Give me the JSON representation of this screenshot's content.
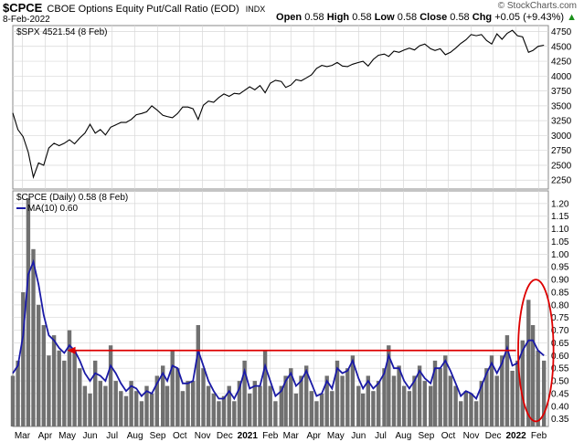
{
  "header": {
    "symbol": "$CPCE",
    "description": "CBOE Options Equity Put/Call Ratio (EOD)",
    "exchange": "INDX",
    "date": "8-Feb-2022",
    "credit": "© StockCharts.com",
    "open_label": "Open",
    "open": "0.58",
    "high_label": "High",
    "high": "0.58",
    "low_label": "Low",
    "low": "0.58",
    "close_label": "Close",
    "close": "0.58",
    "chg_label": "Chg",
    "chg": "+0.05 (+9.43%)",
    "chg_arrow": "▲"
  },
  "chart_data": [
    {
      "type": "line",
      "legend": "$SPX 4521.54 (8 Feb)",
      "color": "#000000",
      "ylim": [
        2100,
        4850
      ],
      "yticks": [
        2250,
        2500,
        2750,
        3000,
        3250,
        3500,
        3750,
        4000,
        4250,
        4500,
        4750
      ],
      "x": [
        "2020-02-17",
        "2020-02-24",
        "2020-03-02",
        "2020-03-09",
        "2020-03-16",
        "2020-03-23",
        "2020-03-30",
        "2020-04-06",
        "2020-04-13",
        "2020-04-20",
        "2020-04-27",
        "2020-05-04",
        "2020-05-11",
        "2020-05-18",
        "2020-05-25",
        "2020-06-01",
        "2020-06-08",
        "2020-06-15",
        "2020-06-22",
        "2020-06-29",
        "2020-07-06",
        "2020-07-13",
        "2020-07-20",
        "2020-07-27",
        "2020-08-03",
        "2020-08-10",
        "2020-08-17",
        "2020-08-24",
        "2020-08-31",
        "2020-09-08",
        "2020-09-14",
        "2020-09-21",
        "2020-09-28",
        "2020-10-05",
        "2020-10-12",
        "2020-10-19",
        "2020-10-26",
        "2020-11-02",
        "2020-11-09",
        "2020-11-16",
        "2020-11-23",
        "2020-11-30",
        "2020-12-07",
        "2020-12-14",
        "2020-12-21",
        "2020-12-28",
        "2021-01-04",
        "2021-01-11",
        "2021-01-18",
        "2021-01-25",
        "2021-02-01",
        "2021-02-08",
        "2021-02-16",
        "2021-02-22",
        "2021-03-01",
        "2021-03-08",
        "2021-03-15",
        "2021-03-22",
        "2021-03-29",
        "2021-04-05",
        "2021-04-12",
        "2021-04-19",
        "2021-04-26",
        "2021-05-03",
        "2021-05-10",
        "2021-05-17",
        "2021-05-24",
        "2021-06-01",
        "2021-06-07",
        "2021-06-14",
        "2021-06-21",
        "2021-06-28",
        "2021-07-06",
        "2021-07-12",
        "2021-07-19",
        "2021-07-26",
        "2021-08-02",
        "2021-08-09",
        "2021-08-16",
        "2021-08-23",
        "2021-08-30",
        "2021-09-07",
        "2021-09-13",
        "2021-09-20",
        "2021-09-27",
        "2021-10-04",
        "2021-10-11",
        "2021-10-18",
        "2021-10-25",
        "2021-11-01",
        "2021-11-08",
        "2021-11-15",
        "2021-11-22",
        "2021-11-29",
        "2021-12-06",
        "2021-12-13",
        "2021-12-20",
        "2021-12-27",
        "2022-01-03",
        "2022-01-10",
        "2022-01-18",
        "2022-01-24",
        "2022-01-31",
        "2022-02-08"
      ],
      "values": [
        3380,
        3100,
        2980,
        2720,
        2300,
        2540,
        2500,
        2790,
        2870,
        2830,
        2870,
        2930,
        2860,
        2960,
        3040,
        3190,
        3040,
        3100,
        3010,
        3140,
        3180,
        3220,
        3220,
        3270,
        3350,
        3370,
        3400,
        3500,
        3430,
        3340,
        3320,
        3300,
        3370,
        3480,
        3480,
        3450,
        3270,
        3510,
        3580,
        3560,
        3640,
        3700,
        3660,
        3710,
        3700,
        3760,
        3820,
        3770,
        3840,
        3720,
        3880,
        3930,
        3910,
        3810,
        3850,
        3940,
        3920,
        3970,
        4020,
        4130,
        4180,
        4160,
        4180,
        4230,
        4170,
        4160,
        4200,
        4230,
        4250,
        4170,
        4280,
        4350,
        4370,
        4330,
        4420,
        4400,
        4440,
        4470,
        4440,
        4510,
        4540,
        4460,
        4430,
        4460,
        4360,
        4400,
        4470,
        4550,
        4610,
        4700,
        4680,
        4700,
        4600,
        4540,
        4710,
        4620,
        4720,
        4770,
        4680,
        4660,
        4400,
        4430,
        4500,
        4520
      ],
      "xlabels": [
        {
          "x": "2020-03-01",
          "t": "Mar"
        },
        {
          "x": "2020-04-01",
          "t": "Apr"
        },
        {
          "x": "2020-05-01",
          "t": "May"
        },
        {
          "x": "2020-06-01",
          "t": "Jun"
        },
        {
          "x": "2020-07-01",
          "t": "Jul"
        },
        {
          "x": "2020-08-01",
          "t": "Aug"
        },
        {
          "x": "2020-09-01",
          "t": "Sep"
        },
        {
          "x": "2020-10-01",
          "t": "Oct"
        },
        {
          "x": "2020-11-01",
          "t": "Nov"
        },
        {
          "x": "2020-12-01",
          "t": "Dec"
        },
        {
          "x": "2021-01-01",
          "t": "2021",
          "bold": true
        },
        {
          "x": "2021-02-01",
          "t": "Feb"
        },
        {
          "x": "2021-03-01",
          "t": "Mar"
        },
        {
          "x": "2021-04-01",
          "t": "Apr"
        },
        {
          "x": "2021-05-01",
          "t": "May"
        },
        {
          "x": "2021-06-01",
          "t": "Jun"
        },
        {
          "x": "2021-07-01",
          "t": "Jul"
        },
        {
          "x": "2021-08-01",
          "t": "Aug"
        },
        {
          "x": "2021-09-01",
          "t": "Sep"
        },
        {
          "x": "2021-10-01",
          "t": "Oct"
        },
        {
          "x": "2021-11-01",
          "t": "Nov"
        },
        {
          "x": "2021-12-01",
          "t": "Dec"
        },
        {
          "x": "2022-01-01",
          "t": "2022",
          "bold": true
        },
        {
          "x": "2022-02-01",
          "t": "Feb"
        }
      ],
      "grid": true
    },
    {
      "type": "bar",
      "legend": "$CPCE (Daily) 0.58 (8 Feb)",
      "ma_legend": "MA(10) 0.60",
      "bar_color": "#707070",
      "ma_color": "#1a1aa6",
      "annotation_color": "#dd0000",
      "ylim": [
        0.32,
        1.25
      ],
      "yticks": [
        0.35,
        0.4,
        0.45,
        0.5,
        0.55,
        0.6,
        0.65,
        0.7,
        0.75,
        0.8,
        0.85,
        0.9,
        0.95,
        1.0,
        1.05,
        1.1,
        1.15,
        1.2
      ],
      "ytick_labels": [
        "0.35",
        "0.40",
        "0.45",
        "0.50",
        "0.55",
        "0.60",
        "0.65",
        "0.70",
        "0.75",
        "0.80",
        "0.85",
        "0.90",
        "0.95",
        "1.00",
        "1.05",
        "1.10",
        "1.15",
        "1.20"
      ],
      "x": [
        "2020-02-17",
        "2020-02-24",
        "2020-03-02",
        "2020-03-09",
        "2020-03-16",
        "2020-03-23",
        "2020-03-30",
        "2020-04-06",
        "2020-04-13",
        "2020-04-20",
        "2020-04-27",
        "2020-05-04",
        "2020-05-11",
        "2020-05-18",
        "2020-05-25",
        "2020-06-01",
        "2020-06-08",
        "2020-06-15",
        "2020-06-22",
        "2020-06-29",
        "2020-07-06",
        "2020-07-13",
        "2020-07-20",
        "2020-07-27",
        "2020-08-03",
        "2020-08-10",
        "2020-08-17",
        "2020-08-24",
        "2020-08-31",
        "2020-09-08",
        "2020-09-14",
        "2020-09-21",
        "2020-09-28",
        "2020-10-05",
        "2020-10-12",
        "2020-10-19",
        "2020-10-26",
        "2020-11-02",
        "2020-11-09",
        "2020-11-16",
        "2020-11-23",
        "2020-11-30",
        "2020-12-07",
        "2020-12-14",
        "2020-12-21",
        "2020-12-28",
        "2021-01-04",
        "2021-01-11",
        "2021-01-18",
        "2021-01-25",
        "2021-02-01",
        "2021-02-08",
        "2021-02-16",
        "2021-02-22",
        "2021-03-01",
        "2021-03-08",
        "2021-03-15",
        "2021-03-22",
        "2021-03-29",
        "2021-04-05",
        "2021-04-12",
        "2021-04-19",
        "2021-04-26",
        "2021-05-03",
        "2021-05-10",
        "2021-05-17",
        "2021-05-24",
        "2021-06-01",
        "2021-06-07",
        "2021-06-14",
        "2021-06-21",
        "2021-06-28",
        "2021-07-06",
        "2021-07-12",
        "2021-07-19",
        "2021-07-26",
        "2021-08-02",
        "2021-08-09",
        "2021-08-16",
        "2021-08-23",
        "2021-08-30",
        "2021-09-07",
        "2021-09-13",
        "2021-09-20",
        "2021-09-27",
        "2021-10-04",
        "2021-10-11",
        "2021-10-18",
        "2021-10-25",
        "2021-11-01",
        "2021-11-08",
        "2021-11-15",
        "2021-11-22",
        "2021-11-29",
        "2021-12-06",
        "2021-12-13",
        "2021-12-20",
        "2021-12-27",
        "2022-01-03",
        "2022-01-10",
        "2022-01-18",
        "2022-01-24",
        "2022-01-31",
        "2022-02-08"
      ],
      "values": [
        0.52,
        0.58,
        0.85,
        1.22,
        1.02,
        0.8,
        0.72,
        0.6,
        0.68,
        0.62,
        0.58,
        0.7,
        0.62,
        0.55,
        0.48,
        0.45,
        0.58,
        0.5,
        0.48,
        0.64,
        0.5,
        0.46,
        0.44,
        0.5,
        0.46,
        0.42,
        0.48,
        0.45,
        0.52,
        0.56,
        0.48,
        0.62,
        0.55,
        0.46,
        0.5,
        0.5,
        0.72,
        0.55,
        0.48,
        0.45,
        0.42,
        0.44,
        0.48,
        0.42,
        0.5,
        0.58,
        0.45,
        0.5,
        0.48,
        0.62,
        0.48,
        0.42,
        0.48,
        0.52,
        0.55,
        0.45,
        0.52,
        0.56,
        0.46,
        0.42,
        0.45,
        0.52,
        0.46,
        0.58,
        0.52,
        0.55,
        0.6,
        0.48,
        0.45,
        0.52,
        0.46,
        0.5,
        0.55,
        0.64,
        0.52,
        0.56,
        0.48,
        0.46,
        0.52,
        0.56,
        0.5,
        0.48,
        0.58,
        0.55,
        0.6,
        0.52,
        0.48,
        0.42,
        0.46,
        0.45,
        0.42,
        0.5,
        0.55,
        0.6,
        0.52,
        0.6,
        0.68,
        0.54,
        0.58,
        0.66,
        0.82,
        0.72,
        0.62,
        0.58
      ],
      "ma": [
        0.53,
        0.56,
        0.68,
        0.92,
        0.97,
        0.88,
        0.76,
        0.68,
        0.66,
        0.63,
        0.61,
        0.64,
        0.62,
        0.58,
        0.53,
        0.5,
        0.53,
        0.52,
        0.5,
        0.56,
        0.53,
        0.49,
        0.46,
        0.48,
        0.47,
        0.44,
        0.46,
        0.45,
        0.49,
        0.53,
        0.5,
        0.56,
        0.55,
        0.49,
        0.49,
        0.5,
        0.62,
        0.56,
        0.5,
        0.46,
        0.43,
        0.43,
        0.46,
        0.43,
        0.47,
        0.54,
        0.47,
        0.48,
        0.48,
        0.56,
        0.5,
        0.44,
        0.46,
        0.5,
        0.53,
        0.48,
        0.5,
        0.54,
        0.49,
        0.44,
        0.45,
        0.5,
        0.47,
        0.55,
        0.53,
        0.54,
        0.58,
        0.51,
        0.47,
        0.5,
        0.47,
        0.49,
        0.53,
        0.6,
        0.55,
        0.55,
        0.5,
        0.47,
        0.5,
        0.54,
        0.51,
        0.49,
        0.55,
        0.55,
        0.58,
        0.54,
        0.49,
        0.44,
        0.46,
        0.45,
        0.43,
        0.48,
        0.53,
        0.57,
        0.53,
        0.57,
        0.63,
        0.56,
        0.57,
        0.62,
        0.66,
        0.66,
        0.62,
        0.6
      ],
      "arrow": {
        "x_start": "2022-01-01",
        "x_end": "2020-05-01",
        "y": 0.62
      },
      "ellipse": {
        "x_center": "2022-01-28",
        "y_center": 0.62,
        "x_span_days": 24,
        "y_span": 0.28
      },
      "xlabels": [
        {
          "x": "2020-03-01",
          "t": "Mar"
        },
        {
          "x": "2020-04-01",
          "t": "Apr"
        },
        {
          "x": "2020-05-01",
          "t": "May"
        },
        {
          "x": "2020-06-01",
          "t": "Jun"
        },
        {
          "x": "2020-07-01",
          "t": "Jul"
        },
        {
          "x": "2020-08-01",
          "t": "Aug"
        },
        {
          "x": "2020-09-01",
          "t": "Sep"
        },
        {
          "x": "2020-10-01",
          "t": "Oct"
        },
        {
          "x": "2020-11-01",
          "t": "Nov"
        },
        {
          "x": "2020-12-01",
          "t": "Dec"
        },
        {
          "x": "2021-01-01",
          "t": "2021",
          "bold": true
        },
        {
          "x": "2021-02-01",
          "t": "Feb"
        },
        {
          "x": "2021-03-01",
          "t": "Mar"
        },
        {
          "x": "2021-04-01",
          "t": "Apr"
        },
        {
          "x": "2021-05-01",
          "t": "May"
        },
        {
          "x": "2021-06-01",
          "t": "Jun"
        },
        {
          "x": "2021-07-01",
          "t": "Jul"
        },
        {
          "x": "2021-08-01",
          "t": "Aug"
        },
        {
          "x": "2021-09-01",
          "t": "Sep"
        },
        {
          "x": "2021-10-01",
          "t": "Oct"
        },
        {
          "x": "2021-11-01",
          "t": "Nov"
        },
        {
          "x": "2021-12-01",
          "t": "Dec"
        },
        {
          "x": "2022-01-01",
          "t": "2022",
          "bold": true
        },
        {
          "x": "2022-02-01",
          "t": "Feb"
        }
      ],
      "grid": true
    }
  ]
}
